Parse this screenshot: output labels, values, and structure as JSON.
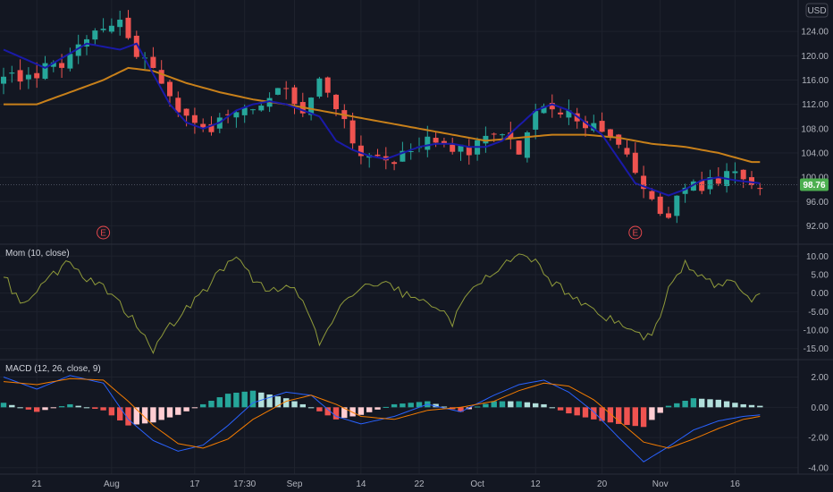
{
  "currency": "USD",
  "last_price": 98.76,
  "colors": {
    "background": "#131722",
    "grid": "#1e222d",
    "up": "#26a69a",
    "down": "#ef5350",
    "sma_fast": "#1a1aa8",
    "sma_slow": "#c8801a",
    "momentum": "#8f9a3a",
    "macd": "#2962ff",
    "signal": "#f57c00",
    "price_label": "#4caf50",
    "earnings": "#e5484d"
  },
  "x_labels": [
    "21",
    "Aug",
    "17",
    "17:30",
    "Sep",
    "14",
    "22",
    "Oct",
    "12",
    "20",
    "Nov",
    "16"
  ],
  "earnings_marker": "E",
  "price_pane": {
    "ticks": [
      "124.00",
      "120.00",
      "116.00",
      "112.00",
      "108.00",
      "104.00",
      "100.00",
      "96.00",
      "92.00"
    ],
    "ylim": [
      90,
      128
    ]
  },
  "momentum_pane": {
    "title": "Mom (10, close)",
    "ticks": [
      "10.00",
      "5.00",
      "0.00",
      "-5.00",
      "-10.00",
      "-15.00"
    ],
    "ylim": [
      -17,
      12
    ]
  },
  "macd_pane": {
    "title": "MACD (12, 26, close, 9)",
    "ticks": [
      "2.00",
      "0.00",
      "-2.00",
      "-4.00"
    ],
    "ylim": [
      -4.3,
      2.8
    ]
  },
  "chart_data": [
    {
      "type": "candlestick",
      "x_ticks": [
        "21",
        "Aug",
        "17",
        "17:30",
        "Sep",
        "14",
        "22",
        "Oct",
        "12",
        "20",
        "Nov",
        "16"
      ],
      "y_ticks": [
        124,
        120,
        116,
        112,
        108,
        104,
        100,
        96,
        92
      ],
      "ylim": [
        90,
        128
      ],
      "price_path": [
        [
          0,
          116
        ],
        [
          6,
          118
        ],
        [
          10,
          122
        ],
        [
          12,
          124
        ],
        [
          14,
          125.5
        ],
        [
          16,
          120
        ],
        [
          18,
          117
        ],
        [
          20,
          113
        ],
        [
          22,
          110
        ],
        [
          24,
          107
        ],
        [
          26,
          110
        ],
        [
          28,
          110.5
        ],
        [
          30,
          111
        ],
        [
          32,
          114
        ],
        [
          34,
          113.5
        ],
        [
          36,
          111
        ],
        [
          38,
          116
        ],
        [
          40,
          112
        ],
        [
          42,
          106
        ],
        [
          44,
          103
        ],
        [
          46,
          102
        ],
        [
          48,
          104
        ],
        [
          50,
          106
        ],
        [
          52,
          106
        ],
        [
          54,
          105
        ],
        [
          56,
          104
        ],
        [
          58,
          106
        ],
        [
          60,
          106.5
        ],
        [
          62,
          105
        ],
        [
          64,
          110
        ],
        [
          66,
          112
        ],
        [
          68,
          111
        ],
        [
          70,
          109
        ],
        [
          72,
          108
        ],
        [
          74,
          106
        ],
        [
          76,
          100
        ],
        [
          78,
          96
        ],
        [
          80,
          94
        ],
        [
          82,
          98
        ],
        [
          84,
          99
        ],
        [
          86,
          99.5
        ],
        [
          88,
          100
        ],
        [
          90,
          99.5
        ],
        [
          91,
          97
        ]
      ],
      "sma_fast_path": [
        [
          0,
          121
        ],
        [
          5,
          118
        ],
        [
          10,
          122
        ],
        [
          14,
          121
        ],
        [
          16,
          122
        ],
        [
          18,
          117
        ],
        [
          20,
          112
        ],
        [
          22,
          109
        ],
        [
          24,
          108
        ],
        [
          26,
          109
        ],
        [
          28,
          111
        ],
        [
          30,
          112
        ],
        [
          32,
          112.5
        ],
        [
          34,
          112
        ],
        [
          36,
          111
        ],
        [
          38,
          110
        ],
        [
          40,
          106
        ],
        [
          42,
          104.5
        ],
        [
          44,
          103.5
        ],
        [
          46,
          103
        ],
        [
          48,
          104
        ],
        [
          50,
          105
        ],
        [
          52,
          105.5
        ],
        [
          54,
          105.5
        ],
        [
          56,
          105
        ],
        [
          58,
          105
        ],
        [
          60,
          106
        ],
        [
          62,
          108.5
        ],
        [
          64,
          111
        ],
        [
          66,
          112
        ],
        [
          68,
          111
        ],
        [
          70,
          109
        ],
        [
          72,
          107
        ],
        [
          74,
          103
        ],
        [
          76,
          99
        ],
        [
          78,
          98
        ],
        [
          80,
          97
        ],
        [
          82,
          98
        ],
        [
          84,
          99.5
        ],
        [
          86,
          100
        ],
        [
          88,
          99.5
        ],
        [
          91,
          99
        ]
      ],
      "sma_slow_path": [
        [
          0,
          112
        ],
        [
          4,
          112
        ],
        [
          8,
          114
        ],
        [
          12,
          116
        ],
        [
          15,
          118
        ],
        [
          18,
          117.5
        ],
        [
          22,
          115.5
        ],
        [
          26,
          114
        ],
        [
          30,
          112.8
        ],
        [
          34,
          112
        ],
        [
          38,
          111
        ],
        [
          42,
          110
        ],
        [
          46,
          109
        ],
        [
          50,
          108
        ],
        [
          54,
          107
        ],
        [
          58,
          106
        ],
        [
          62,
          106.5
        ],
        [
          66,
          107
        ],
        [
          70,
          107
        ],
        [
          74,
          106.5
        ],
        [
          78,
          105.5
        ],
        [
          82,
          105
        ],
        [
          86,
          104
        ],
        [
          90,
          102.5
        ]
      ],
      "last_price": 98.76,
      "earnings_markers": [
        {
          "label": "E",
          "x_index": 12
        },
        {
          "label": "E",
          "x_index": 76
        }
      ]
    },
    {
      "type": "line",
      "title": "Mom (10, close)",
      "y_ticks": [
        10,
        5,
        0,
        -5,
        -10,
        -15
      ],
      "ylim": [
        -17,
        12
      ],
      "series": [
        {
          "values": [
            [
              0,
              5
            ],
            [
              2,
              -3
            ],
            [
              4,
              1
            ],
            [
              6,
              5
            ],
            [
              8,
              9
            ],
            [
              10,
              4
            ],
            [
              12,
              2
            ],
            [
              14,
              -3
            ],
            [
              16,
              -8
            ],
            [
              18,
              -15
            ],
            [
              20,
              -9
            ],
            [
              22,
              -4
            ],
            [
              24,
              0
            ],
            [
              26,
              6
            ],
            [
              28,
              9
            ],
            [
              30,
              4
            ],
            [
              32,
              0
            ],
            [
              34,
              3
            ],
            [
              36,
              -2
            ],
            [
              38,
              -14
            ],
            [
              40,
              -6
            ],
            [
              42,
              0
            ],
            [
              44,
              2
            ],
            [
              46,
              3
            ],
            [
              48,
              0
            ],
            [
              50,
              -2
            ],
            [
              52,
              -3
            ],
            [
              54,
              -8
            ],
            [
              56,
              0
            ],
            [
              58,
              5
            ],
            [
              60,
              7
            ],
            [
              62,
              10
            ],
            [
              64,
              8
            ],
            [
              66,
              3
            ],
            [
              68,
              0
            ],
            [
              70,
              -3
            ],
            [
              72,
              -6
            ],
            [
              74,
              -8
            ],
            [
              76,
              -11
            ],
            [
              78,
              -12
            ],
            [
              80,
              1
            ],
            [
              82,
              8
            ],
            [
              84,
              4
            ],
            [
              86,
              2
            ],
            [
              88,
              3
            ],
            [
              90,
              -2
            ],
            [
              91,
              -1
            ]
          ]
        }
      ]
    },
    {
      "type": "bar",
      "title": "MACD (12, 26, close, 9)",
      "y_ticks": [
        2,
        0,
        -2,
        -4
      ],
      "ylim": [
        -4.3,
        2.8
      ],
      "macd_path": [
        [
          0,
          2
        ],
        [
          4,
          1.2
        ],
        [
          8,
          2.1
        ],
        [
          12,
          1.6
        ],
        [
          15,
          -0.8
        ],
        [
          18,
          -2.2
        ],
        [
          21,
          -2.9
        ],
        [
          24,
          -2.5
        ],
        [
          27,
          -1.2
        ],
        [
          30,
          0.3
        ],
        [
          34,
          1
        ],
        [
          37,
          0.8
        ],
        [
          40,
          -0.6
        ],
        [
          43,
          -1.1
        ],
        [
          47,
          -0.6
        ],
        [
          51,
          0.2
        ],
        [
          55,
          -0.3
        ],
        [
          59,
          0.8
        ],
        [
          62,
          1.5
        ],
        [
          65,
          1.8
        ],
        [
          68,
          1
        ],
        [
          71,
          -0.3
        ],
        [
          74,
          -2
        ],
        [
          77,
          -3.6
        ],
        [
          80,
          -2.6
        ],
        [
          83,
          -1.5
        ],
        [
          86,
          -0.9
        ],
        [
          89,
          -0.6
        ],
        [
          91,
          -0.5
        ]
      ],
      "signal_path": [
        [
          0,
          1.7
        ],
        [
          4,
          1.5
        ],
        [
          8,
          1.9
        ],
        [
          12,
          1.8
        ],
        [
          15,
          0.4
        ],
        [
          18,
          -1.2
        ],
        [
          21,
          -2.4
        ],
        [
          24,
          -2.7
        ],
        [
          27,
          -2.1
        ],
        [
          30,
          -0.8
        ],
        [
          34,
          0.4
        ],
        [
          37,
          0.8
        ],
        [
          40,
          0.2
        ],
        [
          43,
          -0.6
        ],
        [
          47,
          -0.8
        ],
        [
          51,
          -0.2
        ],
        [
          55,
          0
        ],
        [
          59,
          0.4
        ],
        [
          62,
          1.1
        ],
        [
          65,
          1.6
        ],
        [
          68,
          1.4
        ],
        [
          71,
          0.5
        ],
        [
          74,
          -0.9
        ],
        [
          77,
          -2.3
        ],
        [
          80,
          -2.7
        ],
        [
          83,
          -2.1
        ],
        [
          86,
          -1.4
        ],
        [
          89,
          -0.8
        ],
        [
          91,
          -0.6
        ]
      ]
    }
  ]
}
